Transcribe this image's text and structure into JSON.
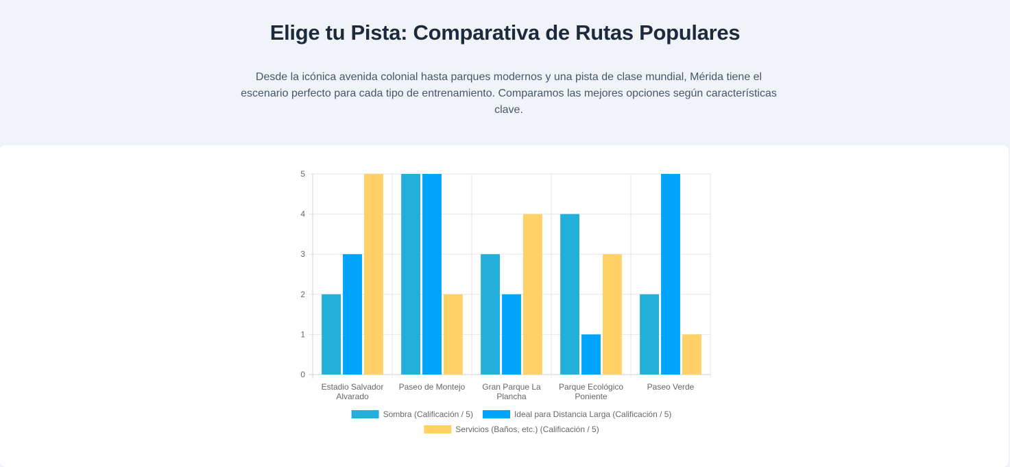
{
  "header": {
    "title": "Elige tu Pista: Comparativa de Rutas Populares",
    "subtitle": "Desde la icónica avenida colonial hasta parques modernos y una pista de clase mundial, Mérida tiene el escenario perfecto para cada tipo de entrenamiento. Comparamos las mejores opciones según características clave."
  },
  "chart_data": {
    "type": "bar",
    "categories": [
      [
        "Estadio Salvador",
        "Alvarado"
      ],
      [
        "Paseo de Montejo"
      ],
      [
        "Gran Parque La",
        "Plancha"
      ],
      [
        "Parque Ecológico",
        "Poniente"
      ],
      [
        "Paseo Verde"
      ]
    ],
    "series": [
      {
        "name": "Sombra (Calificación / 5)",
        "color": "#22b0da",
        "values": [
          2,
          5,
          3,
          4,
          2
        ]
      },
      {
        "name": "Ideal para Distancia Larga (Calificación / 5)",
        "color": "#00a4fa",
        "values": [
          3,
          5,
          2,
          1,
          5
        ]
      },
      {
        "name": "Servicios (Baños, etc.) (Calificación / 5)",
        "color": "#ffd166",
        "values": [
          5,
          2,
          4,
          3,
          1
        ]
      }
    ],
    "ylim": [
      0,
      5
    ],
    "yticks": [
      0,
      1,
      2,
      3,
      4,
      5
    ],
    "grid": true,
    "legend_position": "bottom"
  }
}
